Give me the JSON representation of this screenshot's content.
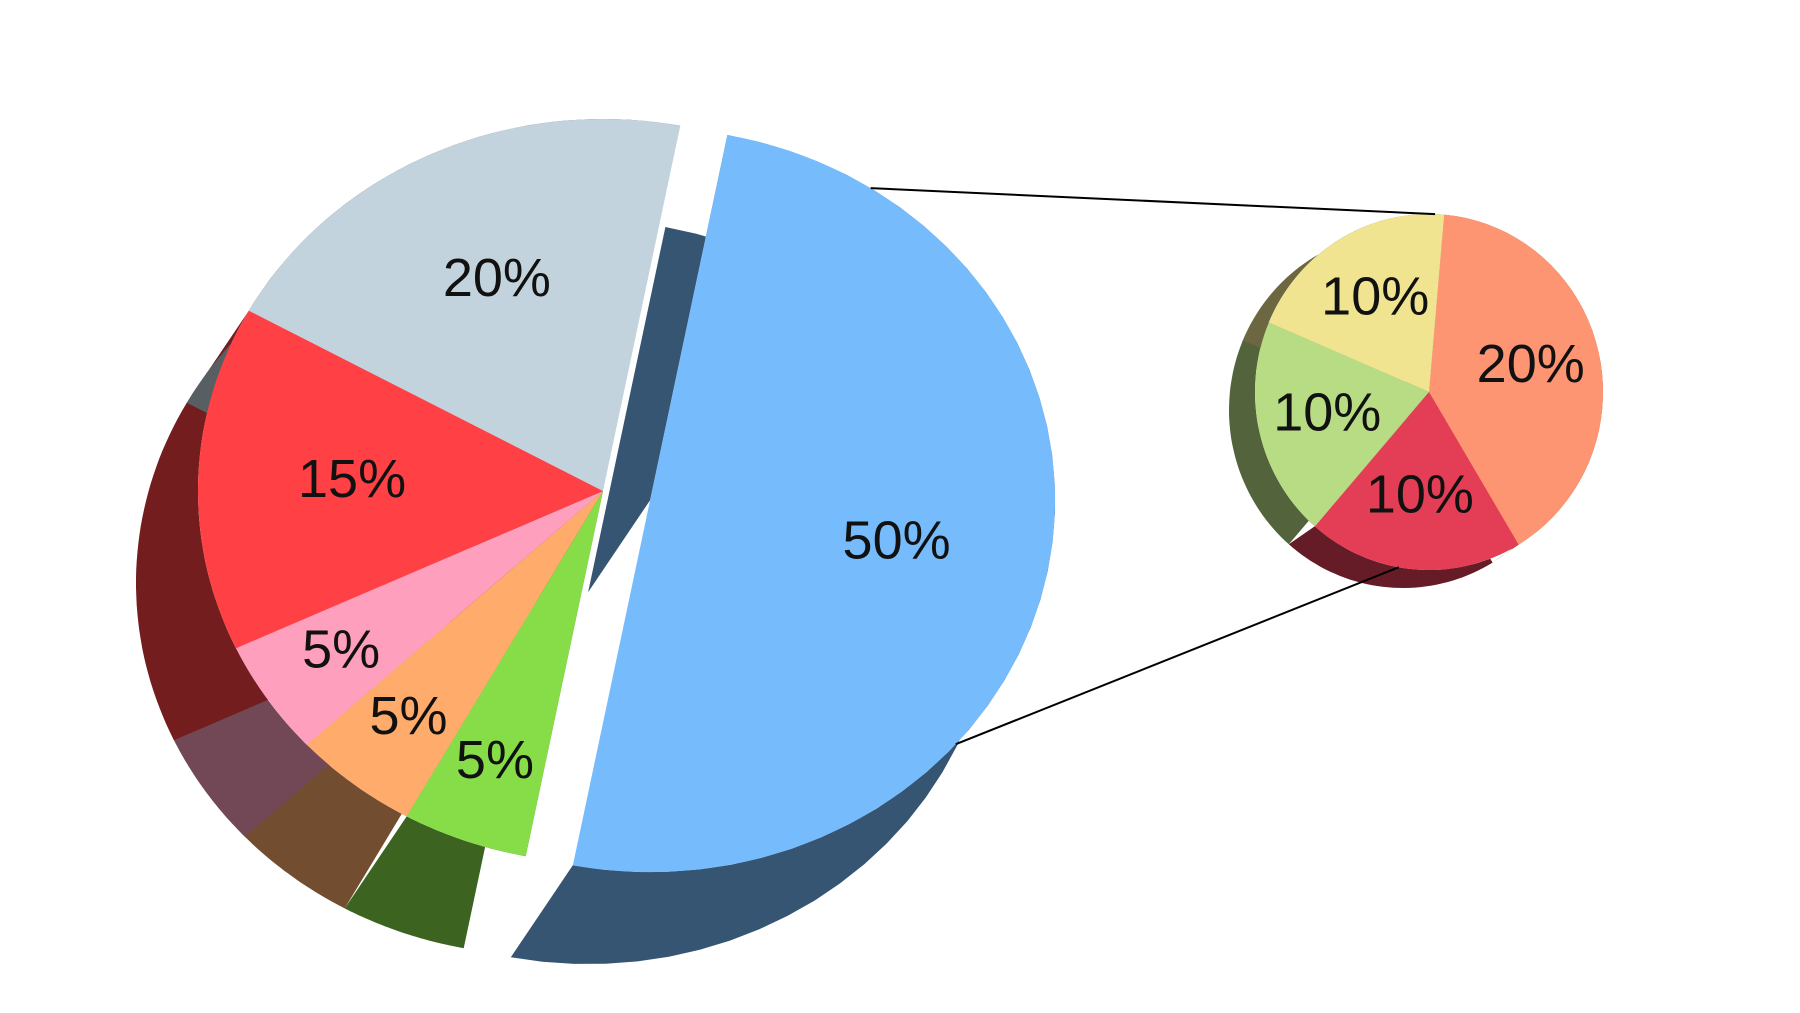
{
  "chart_data": [
    {
      "type": "pie",
      "values": [
        50,
        5,
        5,
        5,
        15,
        20
      ],
      "value_labels": [
        "50%",
        "5%",
        "5%",
        "5%",
        "15%",
        "20%"
      ],
      "colors": [
        "#76bcfd",
        "#86dd48",
        "#ffab6b",
        "#ff9fbe",
        "#ff4045",
        "#c3d3dd"
      ]
    },
    {
      "type": "pie",
      "values": [
        20,
        10,
        10,
        10
      ],
      "value_labels": [
        "20%",
        "10%",
        "10%",
        "10%"
      ],
      "colors": [
        "#fd9573",
        "#e33e55",
        "#b8dc83",
        "#f0e491"
      ]
    }
  ]
}
